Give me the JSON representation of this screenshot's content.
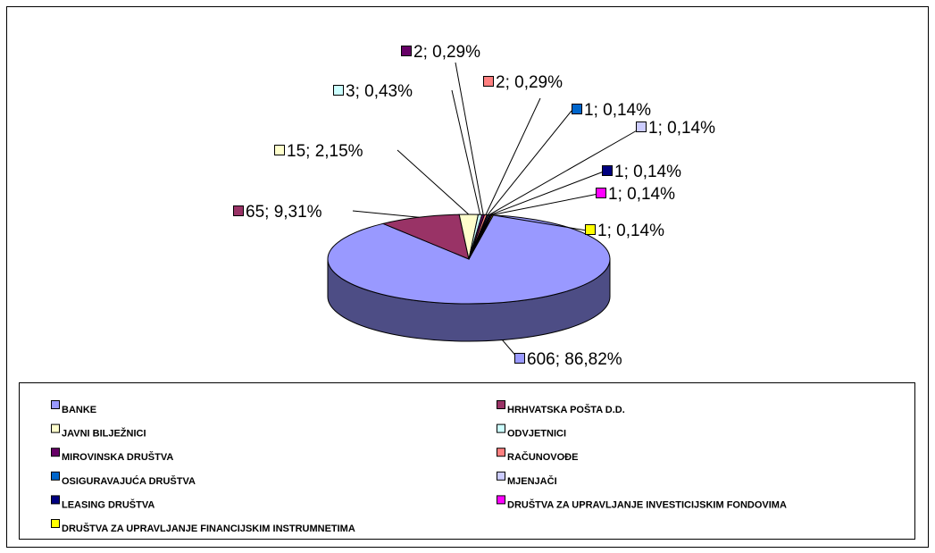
{
  "chart_data": {
    "type": "pie",
    "categories": [
      "BANKE",
      "HRHVATSKA POŠTA D.D.",
      "JAVNI BILJEŽNICI",
      "ODVJETNICI",
      "MIROVINSKA DRUŠTVA",
      "RAČUNOVOĐE",
      "OSIGURAVAJUĆA DRUŠTVA",
      "MJENJAČI",
      "LEASING DRUŠTVA",
      "DRUŠTVA ZA UPRAVLJANJE INVESTICIJSKIM FONDOVIMA",
      "DRUŠTVA ZA UPRAVLJANJE FINANCIJSKIM INSTRUMNETIMA"
    ],
    "values": [
      606,
      65,
      15,
      3,
      2,
      2,
      1,
      1,
      1,
      1,
      1
    ],
    "value_labels": [
      "606; 86,82%",
      "65; 9,31%",
      "15; 2,15%",
      "3; 0,43%",
      "2; 0,29%",
      "2; 0,29%",
      "1; 0,14%",
      "1; 0,14%",
      "1; 0,14%",
      "1; 0,14%",
      "1; 0,14%"
    ],
    "colors": [
      "#9999ff",
      "#993366",
      "#ffffcc",
      "#ccffff",
      "#660066",
      "#ff8080",
      "#0066cc",
      "#ccccff",
      "#000080",
      "#ff00ff",
      "#ffff00"
    ],
    "legend": "bottom"
  }
}
